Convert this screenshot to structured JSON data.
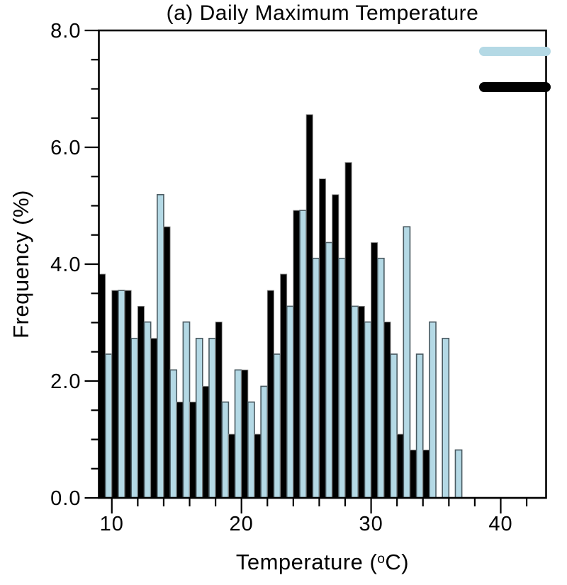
{
  "labels": {
    "title": "(a) Daily Maximum Temperature",
    "ylabel": "Frequency (%)",
    "xlabel_pre": "Temperature (",
    "xlabel_sup": "o",
    "xlabel_post": "C)"
  },
  "colors": {
    "background": "#ffffff",
    "axis": "#000000",
    "series_blue_fill": "#b4d9e5",
    "series_blue_edge": "#4a5a61",
    "series_black_fill": "#000000",
    "series_black_edge": "#8c8c8c"
  },
  "legend": {
    "position": "top-right-inside",
    "entries": [
      {
        "name": "light-blue-swatch",
        "color": "#b4d9e5"
      },
      {
        "name": "black-swatch",
        "color": "#000000"
      }
    ]
  },
  "chart_data": {
    "type": "bar",
    "title": "(a) Daily Maximum Temperature",
    "xlabel": "Temperature (°C)",
    "ylabel": "Frequency (%)",
    "grid": false,
    "bin_width_deg": 1,
    "bin_start_deg": 9,
    "bin_end_deg": 37,
    "bar_arrangement": "paired-half-width: black bar on left half of each 1-degree bin, light-blue bar on right half",
    "categories": [
      "9-10",
      "10-11",
      "11-12",
      "12-13",
      "13-14",
      "14-15",
      "15-16",
      "16-17",
      "17-18",
      "18-19",
      "19-20",
      "20-21",
      "21-22",
      "22-23",
      "23-24",
      "24-25",
      "25-26",
      "26-27",
      "27-28",
      "28-29",
      "29-30",
      "30-31",
      "31-32",
      "32-33",
      "33-34",
      "34-35",
      "35-36",
      "36-37"
    ],
    "series": [
      {
        "name": "black",
        "values": [
          3.83,
          3.55,
          3.55,
          3.28,
          2.73,
          4.64,
          1.64,
          1.64,
          1.91,
          3.01,
          1.09,
          2.19,
          1.09,
          3.55,
          3.83,
          4.92,
          6.56,
          5.46,
          5.19,
          5.74,
          3.28,
          4.37,
          3.01,
          1.09,
          0.82,
          0.82,
          0,
          0
        ]
      },
      {
        "name": "light-blue",
        "values": [
          2.46,
          3.55,
          2.73,
          3.01,
          5.19,
          2.19,
          3.01,
          2.73,
          2.73,
          1.64,
          2.19,
          1.64,
          1.91,
          2.46,
          3.28,
          4.92,
          4.1,
          4.37,
          4.1,
          3.28,
          3.01,
          4.1,
          2.46,
          4.64,
          2.46,
          3.01,
          2.73,
          0.82
        ]
      }
    ],
    "xlim": [
      9,
      43.5
    ],
    "ylim": [
      0,
      8
    ],
    "x_major_ticks": [
      10,
      20,
      30,
      40
    ],
    "x_major_tick_labels": [
      "10",
      "20",
      "30",
      "40"
    ],
    "x_minor_ticks": [
      12,
      14,
      16,
      18,
      22,
      24,
      26,
      28,
      32,
      34,
      36,
      38,
      42
    ],
    "y_major_ticks": [
      0,
      2,
      4,
      6,
      8
    ],
    "y_major_tick_labels": [
      "0.0",
      "2.0",
      "4.0",
      "6.0",
      "8.0"
    ],
    "y_minor_ticks": [
      0.5,
      1,
      1.5,
      2.5,
      3,
      3.5,
      4.5,
      5,
      5.5,
      6.5,
      7,
      7.5
    ],
    "legend_position": "upper right inside plot, swatches only, no text"
  }
}
